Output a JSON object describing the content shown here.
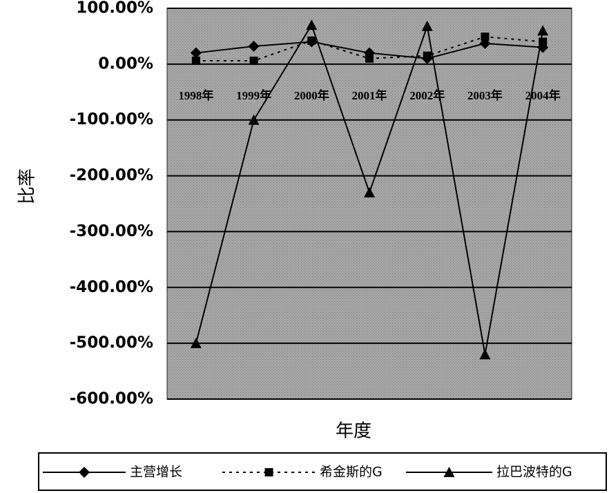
{
  "chart_data": {
    "type": "line",
    "categories": [
      "1998年",
      "1999年",
      "2000年",
      "2001年",
      "2002年",
      "2003年",
      "2004年"
    ],
    "series": [
      {
        "name": "主营增长",
        "color": "#000000",
        "marker": "diamond",
        "dashed": false,
        "values": [
          20,
          32,
          40,
          20,
          10,
          37,
          30
        ]
      },
      {
        "name": "希金斯的G",
        "color": "#000000",
        "marker": "square",
        "dashed": true,
        "values": [
          6,
          6,
          42,
          10,
          15,
          49,
          40
        ]
      },
      {
        "name": "拉巴波特的G",
        "color": "#000000",
        "marker": "triangle",
        "dashed": false,
        "values": [
          -500,
          -100,
          70,
          -230,
          68,
          -520,
          60
        ]
      }
    ],
    "ylim": [
      -600,
      100
    ],
    "yticks": [
      {
        "value": 100,
        "label": "100.00%"
      },
      {
        "value": 0,
        "label": "0.00%"
      },
      {
        "value": -100,
        "label": "-100.00%"
      },
      {
        "value": -200,
        "label": "-200.00%"
      },
      {
        "value": -300,
        "label": "-300.00%"
      },
      {
        "value": -400,
        "label": "-400.00%"
      },
      {
        "value": -500,
        "label": "-500.00%"
      },
      {
        "value": -600,
        "label": "-600.00%"
      }
    ],
    "ylabel": "比率",
    "xlabel": "年度",
    "grid": true,
    "legend": "bottom"
  }
}
